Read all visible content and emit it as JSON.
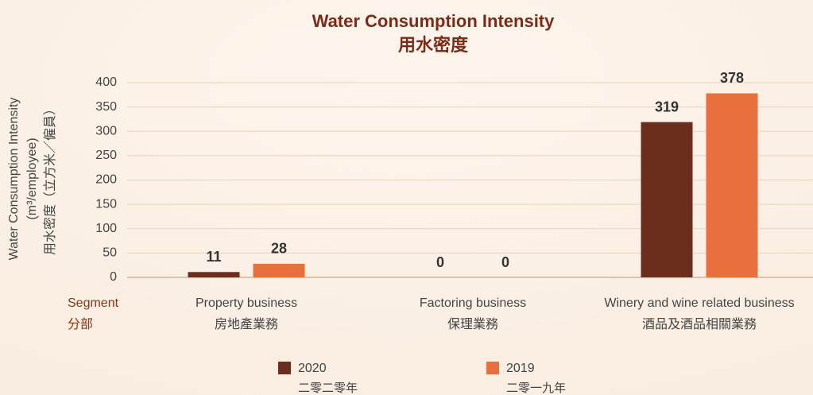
{
  "chart_data": {
    "type": "bar",
    "title": "Water Consumption Intensity",
    "title_zh": "用水密度",
    "ylabel": [
      "Water Consumption Intensity",
      "(m³/employee)",
      "用水密度（立方米／僱員）"
    ],
    "xlabel": [
      "Segment",
      "分部"
    ],
    "categories": [
      "Property business",
      "Factoring business",
      "Winery and wine related business"
    ],
    "categories_zh": [
      "房地產業務",
      "保理業務",
      "酒品及酒品相關業務"
    ],
    "series": [
      {
        "name": "2020",
        "name_zh": "二零二零年",
        "color": "#6b2d1c",
        "values": [
          11,
          0,
          319
        ]
      },
      {
        "name": "2019",
        "name_zh": "二零一九年",
        "color": "#e8703f",
        "values": [
          28,
          0,
          378
        ]
      }
    ],
    "ylim": [
      0,
      400
    ],
    "yticks": [
      0,
      50,
      100,
      150,
      200,
      250,
      300,
      350,
      400
    ],
    "grid": true
  }
}
